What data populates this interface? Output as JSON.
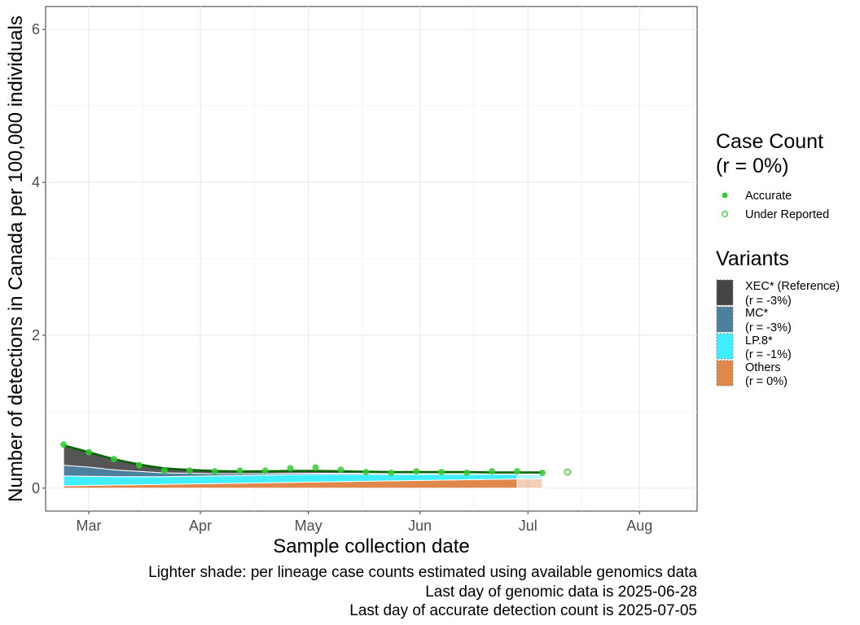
{
  "chart_data": {
    "type": "area",
    "xlabel": "Sample collection date",
    "ylabel": "Number of detections in Canada per 100,000 individuals",
    "ylim": [
      -0.3,
      6.3
    ],
    "xlim": [
      "2025-02-17",
      "2025-08-17"
    ],
    "x_ticks": [
      {
        "date": "2025-03-01",
        "label": "Mar"
      },
      {
        "date": "2025-04-01",
        "label": "Apr"
      },
      {
        "date": "2025-05-01",
        "label": "May"
      },
      {
        "date": "2025-06-01",
        "label": "Jun"
      },
      {
        "date": "2025-07-01",
        "label": "Jul"
      },
      {
        "date": "2025-08-01",
        "label": "Aug"
      }
    ],
    "y_ticks": [
      0,
      2,
      4,
      6
    ],
    "grid": true,
    "legend_position": "right",
    "dates": [
      "2025-02-22",
      "2025-03-01",
      "2025-03-08",
      "2025-03-15",
      "2025-03-22",
      "2025-03-29",
      "2025-04-05",
      "2025-04-12",
      "2025-04-19",
      "2025-04-26",
      "2025-05-03",
      "2025-05-10",
      "2025-05-17",
      "2025-05-24",
      "2025-05-31",
      "2025-06-07",
      "2025-06-14",
      "2025-06-21",
      "2025-06-28",
      "2025-07-05"
    ],
    "stacked_series": [
      {
        "legend_label": "Others",
        "legend_sub": "(r = 0%)",
        "color": "#e0884b",
        "values": [
          0.03,
          0.035,
          0.04,
          0.045,
          0.05,
          0.055,
          0.06,
          0.065,
          0.07,
          0.075,
          0.08,
          0.085,
          0.09,
          0.095,
          0.1,
          0.105,
          0.11,
          0.115,
          0.12,
          0.12
        ]
      },
      {
        "legend_label": "LP.8*",
        "legend_sub": "(r = -1%)",
        "color": "#3fefff",
        "values": [
          0.13,
          0.12,
          0.11,
          0.105,
          0.1,
          0.1,
          0.1,
          0.1,
          0.1,
          0.1,
          0.1,
          0.095,
          0.09,
          0.085,
          0.08,
          0.075,
          0.07,
          0.065,
          0.06,
          0.06
        ]
      },
      {
        "legend_label": "MC*",
        "legend_sub": "(r = -3%)",
        "color": "#4d7f9e",
        "values": [
          0.14,
          0.12,
          0.09,
          0.07,
          0.05,
          0.04,
          0.03,
          0.025,
          0.02,
          0.02,
          0.015,
          0.015,
          0.015,
          0.012,
          0.012,
          0.012,
          0.012,
          0.01,
          0.01,
          0.01
        ]
      },
      {
        "legend_label": "XEC* (Reference)",
        "legend_sub": "(r = -3%)",
        "color": "#555555",
        "values": [
          0.26,
          0.2,
          0.14,
          0.09,
          0.06,
          0.045,
          0.035,
          0.03,
          0.03,
          0.03,
          0.025,
          0.025,
          0.02,
          0.02,
          0.02,
          0.018,
          0.018,
          0.015,
          0.015,
          0.015
        ]
      }
    ],
    "genomic_end_date": "2025-06-28",
    "estimated_end_date": "2025-07-05",
    "fit_line": {
      "color": "#006400",
      "values": [
        0.56,
        0.47,
        0.38,
        0.31,
        0.26,
        0.24,
        0.225,
        0.22,
        0.22,
        0.225,
        0.225,
        0.22,
        0.215,
        0.21,
        0.21,
        0.21,
        0.21,
        0.205,
        0.205,
        0.205
      ]
    },
    "case_points": {
      "color": "#33cc33",
      "accurate": [
        {
          "date": "2025-02-22",
          "value": 0.57
        },
        {
          "date": "2025-03-01",
          "value": 0.47
        },
        {
          "date": "2025-03-08",
          "value": 0.38
        },
        {
          "date": "2025-03-15",
          "value": 0.3
        },
        {
          "date": "2025-03-22",
          "value": 0.23
        },
        {
          "date": "2025-03-29",
          "value": 0.23
        },
        {
          "date": "2025-04-05",
          "value": 0.22
        },
        {
          "date": "2025-04-12",
          "value": 0.23
        },
        {
          "date": "2025-04-19",
          "value": 0.23
        },
        {
          "date": "2025-04-26",
          "value": 0.26
        },
        {
          "date": "2025-05-03",
          "value": 0.27
        },
        {
          "date": "2025-05-10",
          "value": 0.24
        },
        {
          "date": "2025-05-17",
          "value": 0.21
        },
        {
          "date": "2025-05-24",
          "value": 0.2
        },
        {
          "date": "2025-05-31",
          "value": 0.22
        },
        {
          "date": "2025-06-07",
          "value": 0.21
        },
        {
          "date": "2025-06-14",
          "value": 0.2
        },
        {
          "date": "2025-06-21",
          "value": 0.22
        },
        {
          "date": "2025-06-28",
          "value": 0.22
        },
        {
          "date": "2025-07-05",
          "value": 0.2
        }
      ],
      "under_reported": [
        {
          "date": "2025-07-12",
          "value": 0.21
        }
      ]
    },
    "legend_case": {
      "title_line1": "Case Count",
      "title_line2": "(r = 0%)",
      "accurate_label": "Accurate",
      "under_label": "Under Reported"
    },
    "legend_variants_title": "Variants",
    "captions": [
      "Lighter shade: per lineage case counts estimated using available genomics data",
      "Last day of genomic data is 2025-06-28",
      "Last day of accurate detection count is 2025-07-05"
    ]
  }
}
